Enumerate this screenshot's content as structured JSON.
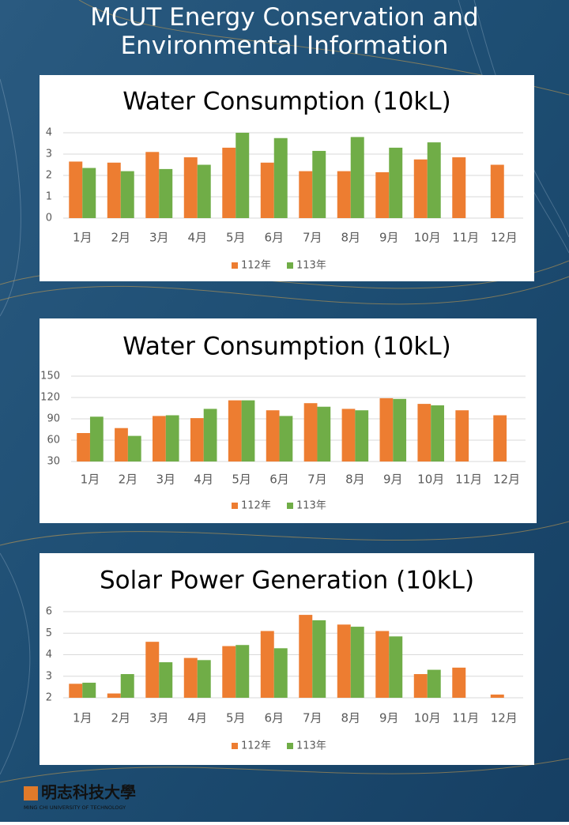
{
  "title": "MCUT Energy Conservation and Environmental Information",
  "logo": {
    "name": "明志科技大學",
    "subtitle": "MING CHI UNIVERSITY OF TECHNOLOGY"
  },
  "chart_data": [
    {
      "type": "bar",
      "title": "Water Consumption (10kL)",
      "categories": [
        "1月",
        "2月",
        "3月",
        "4月",
        "5月",
        "6月",
        "7月",
        "8月",
        "9月",
        "10月",
        "11月",
        "12月"
      ],
      "series": [
        {
          "name": "112年",
          "color": "#ed7d31",
          "values": [
            2.65,
            2.6,
            3.1,
            2.85,
            3.3,
            2.6,
            2.2,
            2.2,
            2.15,
            2.75,
            2.85,
            2.5
          ]
        },
        {
          "name": "113年",
          "color": "#70ad47",
          "values": [
            2.35,
            2.2,
            2.3,
            2.5,
            4.0,
            3.75,
            3.15,
            3.8,
            3.3,
            3.55,
            null,
            null
          ]
        }
      ],
      "ylim": [
        0,
        4
      ],
      "yticks": [
        0,
        1,
        2,
        3,
        4
      ],
      "grid": true,
      "legend": "bottom"
    },
    {
      "type": "bar",
      "title": "Water Consumption (10kL)",
      "categories": [
        "1月",
        "2月",
        "3月",
        "4月",
        "5月",
        "6月",
        "7月",
        "8月",
        "9月",
        "10月",
        "11月",
        "12月"
      ],
      "series": [
        {
          "name": "112年",
          "color": "#ed7d31",
          "values": [
            70,
            77,
            94,
            91,
            116,
            102,
            112,
            104,
            119,
            111,
            102,
            95
          ]
        },
        {
          "name": "113年",
          "color": "#70ad47",
          "values": [
            93,
            66,
            95,
            104,
            116,
            94,
            107,
            102,
            118,
            109,
            null,
            null
          ]
        }
      ],
      "ylim": [
        30,
        150
      ],
      "yticks": [
        30,
        60,
        90,
        120,
        150
      ],
      "grid": true,
      "legend": "bottom"
    },
    {
      "type": "bar",
      "title": "Solar Power Generation (10kL)",
      "categories": [
        "1月",
        "2月",
        "3月",
        "4月",
        "5月",
        "6月",
        "7月",
        "8月",
        "9月",
        "10月",
        "11月",
        "12月"
      ],
      "series": [
        {
          "name": "112年",
          "color": "#ed7d31",
          "values": [
            2.65,
            2.2,
            4.6,
            3.85,
            4.4,
            5.1,
            5.85,
            5.4,
            5.1,
            3.1,
            3.4,
            2.15
          ]
        },
        {
          "name": "113年",
          "color": "#70ad47",
          "values": [
            2.7,
            3.1,
            3.65,
            3.75,
            4.45,
            4.3,
            5.6,
            5.3,
            4.85,
            3.3,
            null,
            null
          ]
        }
      ],
      "ylim": [
        2,
        6
      ],
      "yticks": [
        2,
        3,
        4,
        5,
        6
      ],
      "grid": true,
      "legend": "bottom"
    }
  ]
}
